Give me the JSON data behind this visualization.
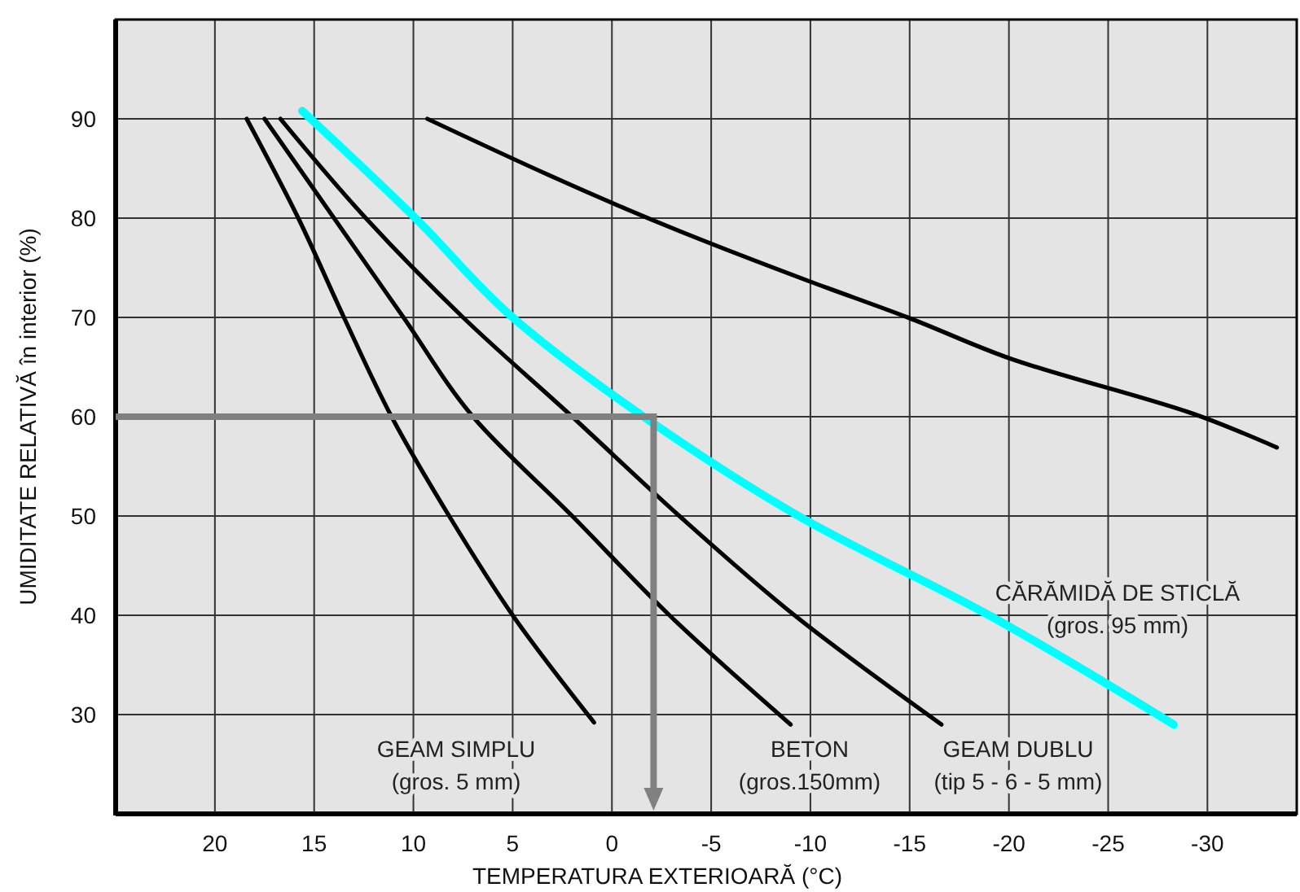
{
  "chart_data": {
    "type": "line",
    "xlabel": "TEMPERATURA EXTERIOARĂ (°C)",
    "ylabel": "UMIDITATE RELATIVĂ în interior (%)",
    "xlim": [
      25,
      -34.5
    ],
    "xticks": [
      20,
      15,
      10,
      5,
      0,
      -5,
      -10,
      -15,
      -20,
      -25,
      -30
    ],
    "ylim": [
      20,
      100
    ],
    "yticks": [
      30,
      40,
      50,
      60,
      70,
      80,
      90
    ],
    "grid": true,
    "line_style": "solid",
    "marker": "none",
    "ref_lines": [
      {
        "axis": "y",
        "value": 60,
        "color": "#808080"
      },
      {
        "axis": "x",
        "value": -2.1,
        "color": "#808080"
      }
    ],
    "series": [
      {
        "color": "#000000",
        "x": [
          18.4,
          15.8,
          13.5,
          11.1,
          8.2,
          5.0,
          0.9
        ],
        "values": [
          90,
          80,
          70,
          60,
          50,
          40,
          29.2
        ]
      },
      {
        "color": "#000000",
        "x": [
          17.5,
          14,
          10.5,
          7,
          2,
          -2.9,
          -9.0
        ],
        "values": [
          90,
          80,
          70,
          60,
          50,
          40,
          29
        ]
      },
      {
        "color": "#000000",
        "x": [
          16.7,
          12.4,
          7.5,
          2,
          -3.4,
          -9.2,
          -16.6
        ],
        "values": [
          90,
          80,
          70,
          60,
          50,
          40,
          29
        ]
      },
      {
        "color": "#00ffff",
        "x": [
          15.6,
          9.9,
          5,
          -1.6,
          -9.4,
          -19,
          -28.3
        ],
        "values": [
          90.8,
          80,
          70,
          60,
          50,
          40,
          29
        ]
      },
      {
        "color": "#000000",
        "x": [
          9.3,
          -3.4,
          -10,
          -14.9,
          -20,
          -29.7,
          -33.5
        ],
        "values": [
          90,
          78.7,
          73.6,
          70,
          65.9,
          60,
          56.9
        ]
      }
    ],
    "annotations": [
      "GEAM SIMPLU\n(gros. 5 mm)",
      "BETON\n(gros.150mm)",
      "GEAM DUBLU\n(tip 5 - 6 - 5 mm)",
      "CĂRĂMIDĂ DE STICLĂ\n(gros. 95 mm)"
    ]
  }
}
